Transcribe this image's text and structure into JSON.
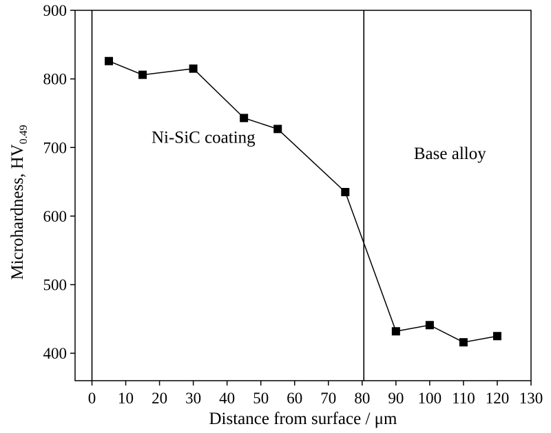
{
  "chart_data": {
    "type": "line",
    "title": "",
    "xlabel": "Distance from surface / μm",
    "ylabel_main": "Microhardness, HV",
    "ylabel_subscript": "0.49",
    "xlim": [
      -5,
      130
    ],
    "ylim": [
      360,
      900
    ],
    "xticks": [
      0,
      10,
      20,
      30,
      40,
      50,
      60,
      70,
      80,
      90,
      100,
      110,
      120,
      130
    ],
    "xtick_labels": [
      "0",
      "10",
      "20",
      "30",
      "40",
      "50",
      "60",
      "70",
      "80",
      "90",
      "100",
      "110",
      "120",
      "130"
    ],
    "yticks": [
      400,
      500,
      600,
      700,
      800,
      900
    ],
    "ytick_labels": [
      "400",
      "500",
      "600",
      "700",
      "800",
      "900"
    ],
    "series": [
      {
        "name": "Microhardness",
        "marker": "square",
        "x": [
          5,
          15,
          30,
          45,
          55,
          75,
          90,
          100,
          110,
          120
        ],
        "y": [
          826,
          806,
          815,
          743,
          727,
          635,
          432,
          441,
          416,
          425
        ]
      }
    ],
    "vertical_lines": [
      0,
      80.5
    ],
    "annotations": [
      {
        "text": "Ni-SiC coating",
        "x": 33,
        "y": 707
      },
      {
        "text": "Base alloy",
        "x": 106,
        "y": 683
      }
    ],
    "grid": false,
    "legend": "none"
  }
}
